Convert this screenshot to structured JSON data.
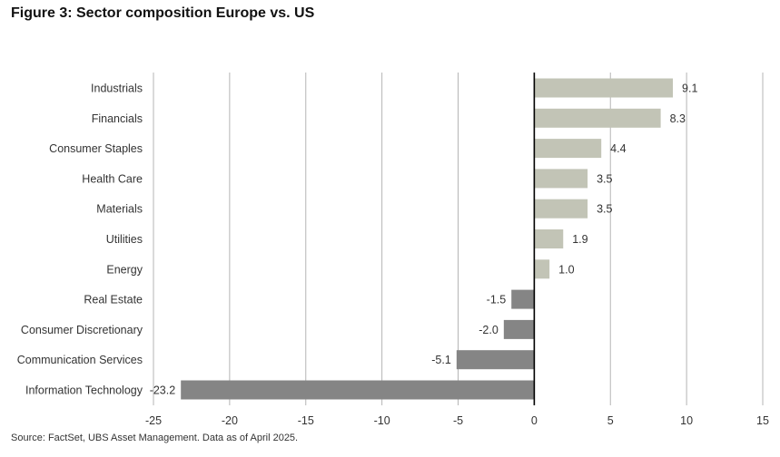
{
  "title": "Figure 3: Sector composition Europe vs. US",
  "source": "Source: FactSet, UBS Asset Management. Data as of April 2025.",
  "colors": {
    "positive": "#c2c4b6",
    "negative": "#858585",
    "grid": "#b5b5b5",
    "zero_line": "#000000",
    "text": "#333333"
  },
  "chart_data": {
    "type": "bar",
    "orientation": "horizontal",
    "categories": [
      "Industrials",
      "Financials",
      "Consumer Staples",
      "Health Care",
      "Materials",
      "Utilities",
      "Energy",
      "Real Estate",
      "Consumer Discretionary",
      "Communication Services",
      "Information Technology"
    ],
    "values": [
      9.1,
      8.3,
      4.4,
      3.5,
      3.5,
      1.9,
      1.0,
      -1.5,
      -2.0,
      -5.1,
      -23.2
    ],
    "value_labels": [
      "9.1",
      "8.3",
      "4.4",
      "3.5",
      "3.5",
      "1.9",
      "1.0",
      "-1.5",
      "-2.0",
      "-5.1",
      "-23.2"
    ],
    "xlim": [
      -25,
      15
    ],
    "xticks": [
      -25,
      -20,
      -15,
      -10,
      -5,
      0,
      5,
      10,
      15
    ],
    "xtick_labels": [
      "-25",
      "-20",
      "-15",
      "-10",
      "-5",
      "0",
      "5",
      "10",
      "15"
    ],
    "grid": "vertical",
    "legend": "none"
  }
}
